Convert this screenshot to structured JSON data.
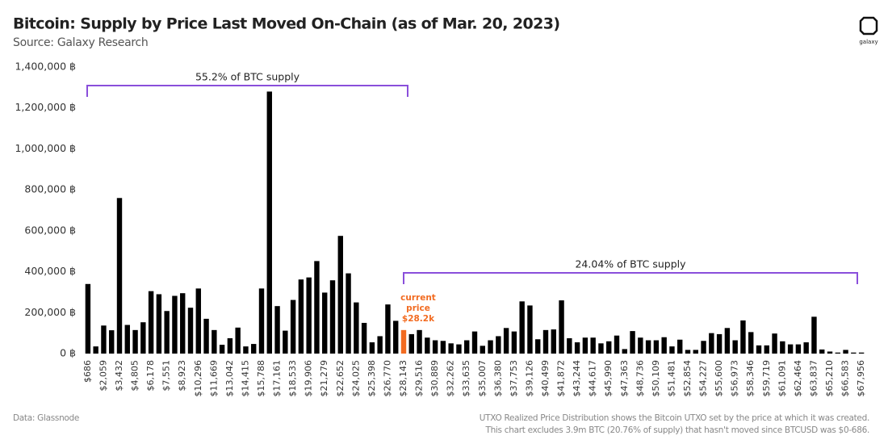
{
  "chart_data": {
    "type": "bar",
    "title": "Bitcoin: Supply by Price Last Moved On-Chain (as of Mar. 20, 2023)",
    "subtitle": "Source: Galaxy Research",
    "logo": "galaxy",
    "source_note": "Data: Glassnode",
    "footnote": [
      "UTXO Realized Price Distribution shows the Bitcoin UTXO set by the price at which it was created.",
      "This chart excludes 3.9m BTC (20.76% of supply) that hasn't moved since BTCUSD was $0-686."
    ],
    "annotations": [
      "55.2% of BTC supply",
      "24.04% of BTC supply"
    ],
    "current_price_label": [
      "current",
      "price",
      "$28.2k"
    ],
    "color": "#000000",
    "highlight_color": "#f26b21",
    "highlight_index": 40,
    "bracket_color": "#8a4fdb",
    "ylim": [
      0,
      1400000
    ],
    "yticks": [
      {
        "value": 0,
        "label": "0 ฿"
      },
      {
        "value": 200000,
        "label": "200,000 ฿"
      },
      {
        "value": 400000,
        "label": "400,000 ฿"
      },
      {
        "value": 600000,
        "label": "600,000 ฿"
      },
      {
        "value": 800000,
        "label": "800,000 ฿"
      },
      {
        "value": 1000000,
        "label": "1,000,000 ฿"
      },
      {
        "value": 1200000,
        "label": "1,200,000 ฿"
      },
      {
        "value": 1400000,
        "label": "1,400,000 ฿"
      }
    ],
    "categories": [
      "$686",
      null,
      "$2,059",
      null,
      "$3,432",
      null,
      "$4,805",
      null,
      "$6,178",
      null,
      "$7,551",
      null,
      "$8,923",
      null,
      "$10,296",
      null,
      "$11,669",
      null,
      "$13,042",
      null,
      "$14,415",
      null,
      "$15,788",
      null,
      "$17,161",
      null,
      "$18,533",
      null,
      "$19,906",
      null,
      "$21,279",
      null,
      "$22,652",
      null,
      "$24,025",
      null,
      "$25,398",
      null,
      "$26,770",
      null,
      "$28,143",
      null,
      "$29,516",
      null,
      "$30,889",
      null,
      "$32,262",
      null,
      "$33,635",
      null,
      "$35,007",
      null,
      "$36,380",
      null,
      "$37,753",
      null,
      "$39,126",
      null,
      "$40,499",
      null,
      "$41,872",
      null,
      "$43,244",
      null,
      "$44,617",
      null,
      "$45,990",
      null,
      "$47,363",
      null,
      "$48,736",
      null,
      "$50,109",
      null,
      "$51,481",
      null,
      "$52,854",
      null,
      "$54,227",
      null,
      "$55,600",
      null,
      "$56,973",
      null,
      "$58,346",
      null,
      "$59,719",
      null,
      "$61,091",
      null,
      "$62,464",
      null,
      "$63,837",
      null,
      "$65,210",
      null,
      "$66,583",
      null,
      "$67,956"
    ],
    "values": [
      340000,
      35000,
      137000,
      114000,
      760000,
      140000,
      115000,
      153000,
      305000,
      290000,
      208000,
      282000,
      295000,
      224000,
      318000,
      170000,
      115000,
      43000,
      75000,
      127000,
      35000,
      47000,
      318000,
      1280000,
      232000,
      112000,
      262000,
      362000,
      372000,
      452000,
      298000,
      358000,
      575000,
      392000,
      250000,
      150000,
      55000,
      85000,
      240000,
      160000,
      115000,
      95000,
      115000,
      78000,
      65000,
      62000,
      50000,
      45000,
      65000,
      108000,
      38000,
      65000,
      85000,
      125000,
      108000,
      255000,
      235000,
      70000,
      115000,
      118000,
      260000,
      75000,
      55000,
      78000,
      78000,
      50000,
      60000,
      88000,
      22000,
      110000,
      78000,
      65000,
      65000,
      80000,
      35000,
      68000,
      18000,
      18000,
      62000,
      100000,
      95000,
      125000,
      65000,
      162000,
      105000,
      40000,
      40000,
      98000,
      60000,
      45000,
      45000,
      55000,
      180000,
      20000,
      10000,
      5000,
      18000,
      5000,
      5000
    ]
  }
}
